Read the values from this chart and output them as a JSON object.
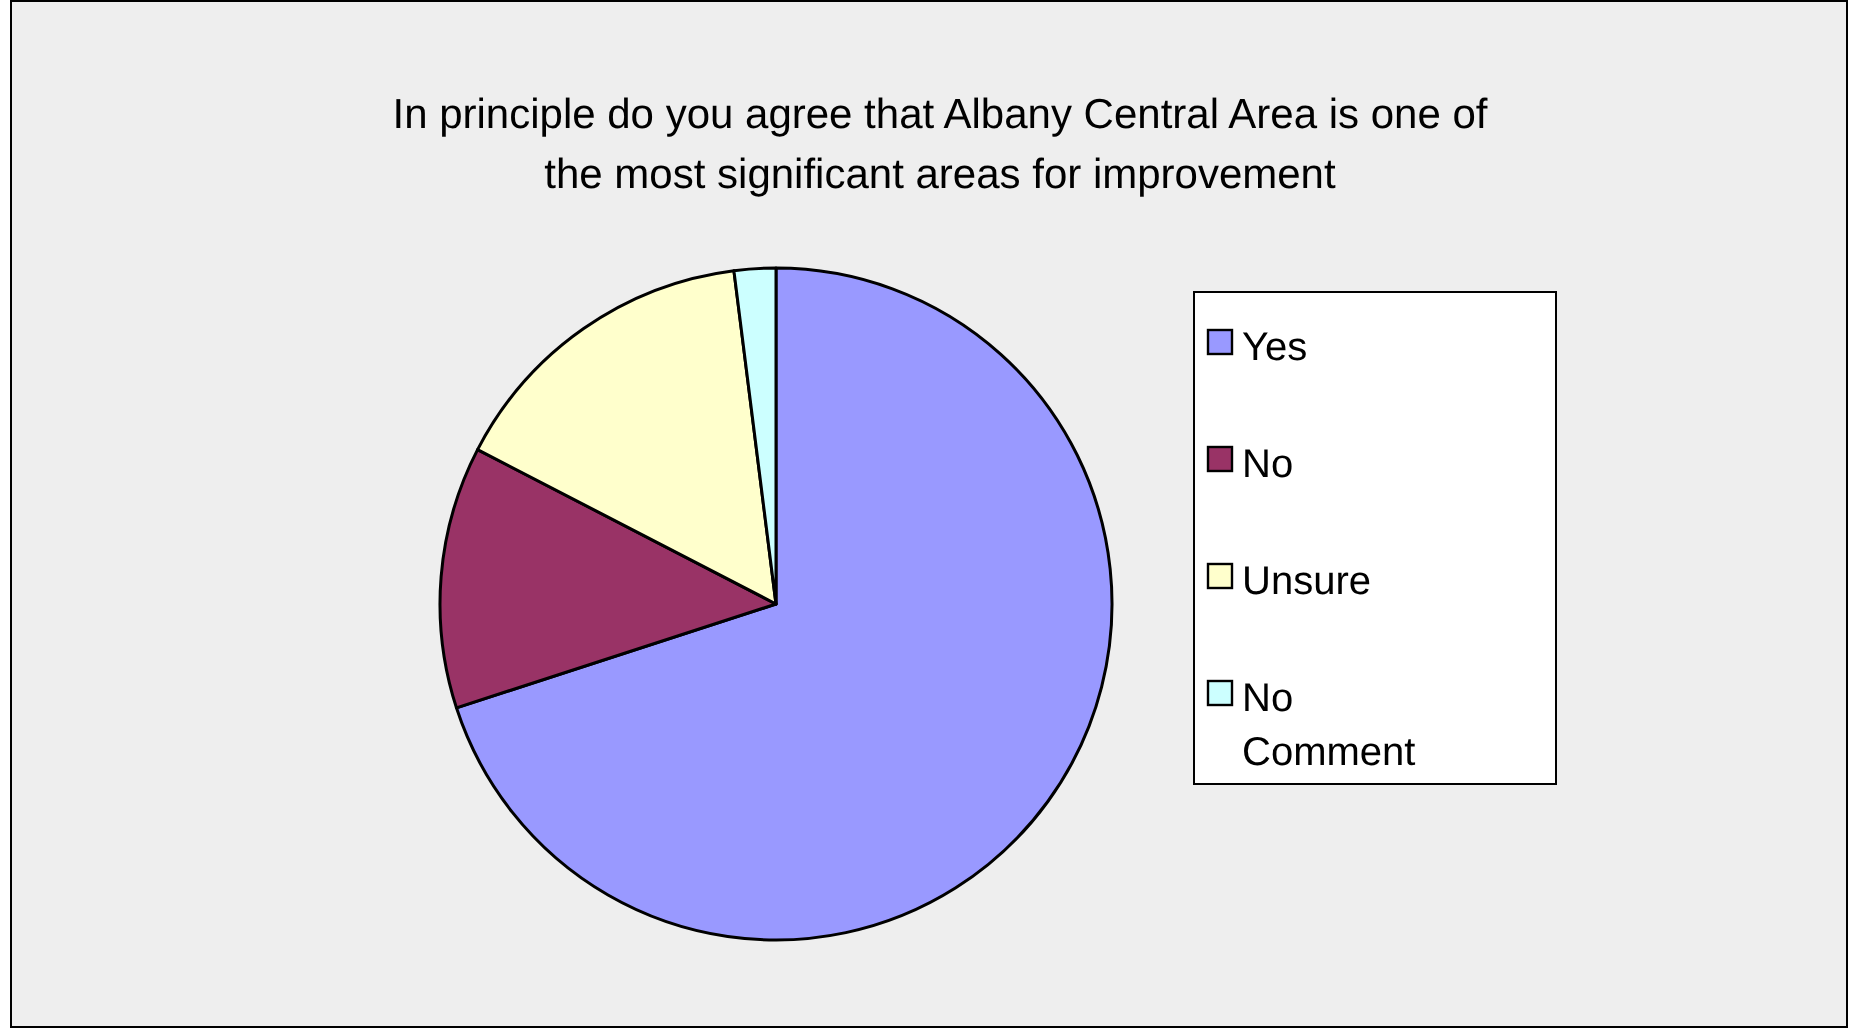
{
  "chart_data": {
    "type": "pie",
    "title": "In principle do you agree that Albany Central Area is one of the most significant areas for improvement",
    "categories": [
      "Yes",
      "No",
      "Unsure",
      "No Comment"
    ],
    "values": [
      70,
      12.6,
      15.4,
      2
    ],
    "colors": [
      "#9999ff",
      "#993366",
      "#ffffcc",
      "#ccffff"
    ],
    "legend": "right"
  }
}
